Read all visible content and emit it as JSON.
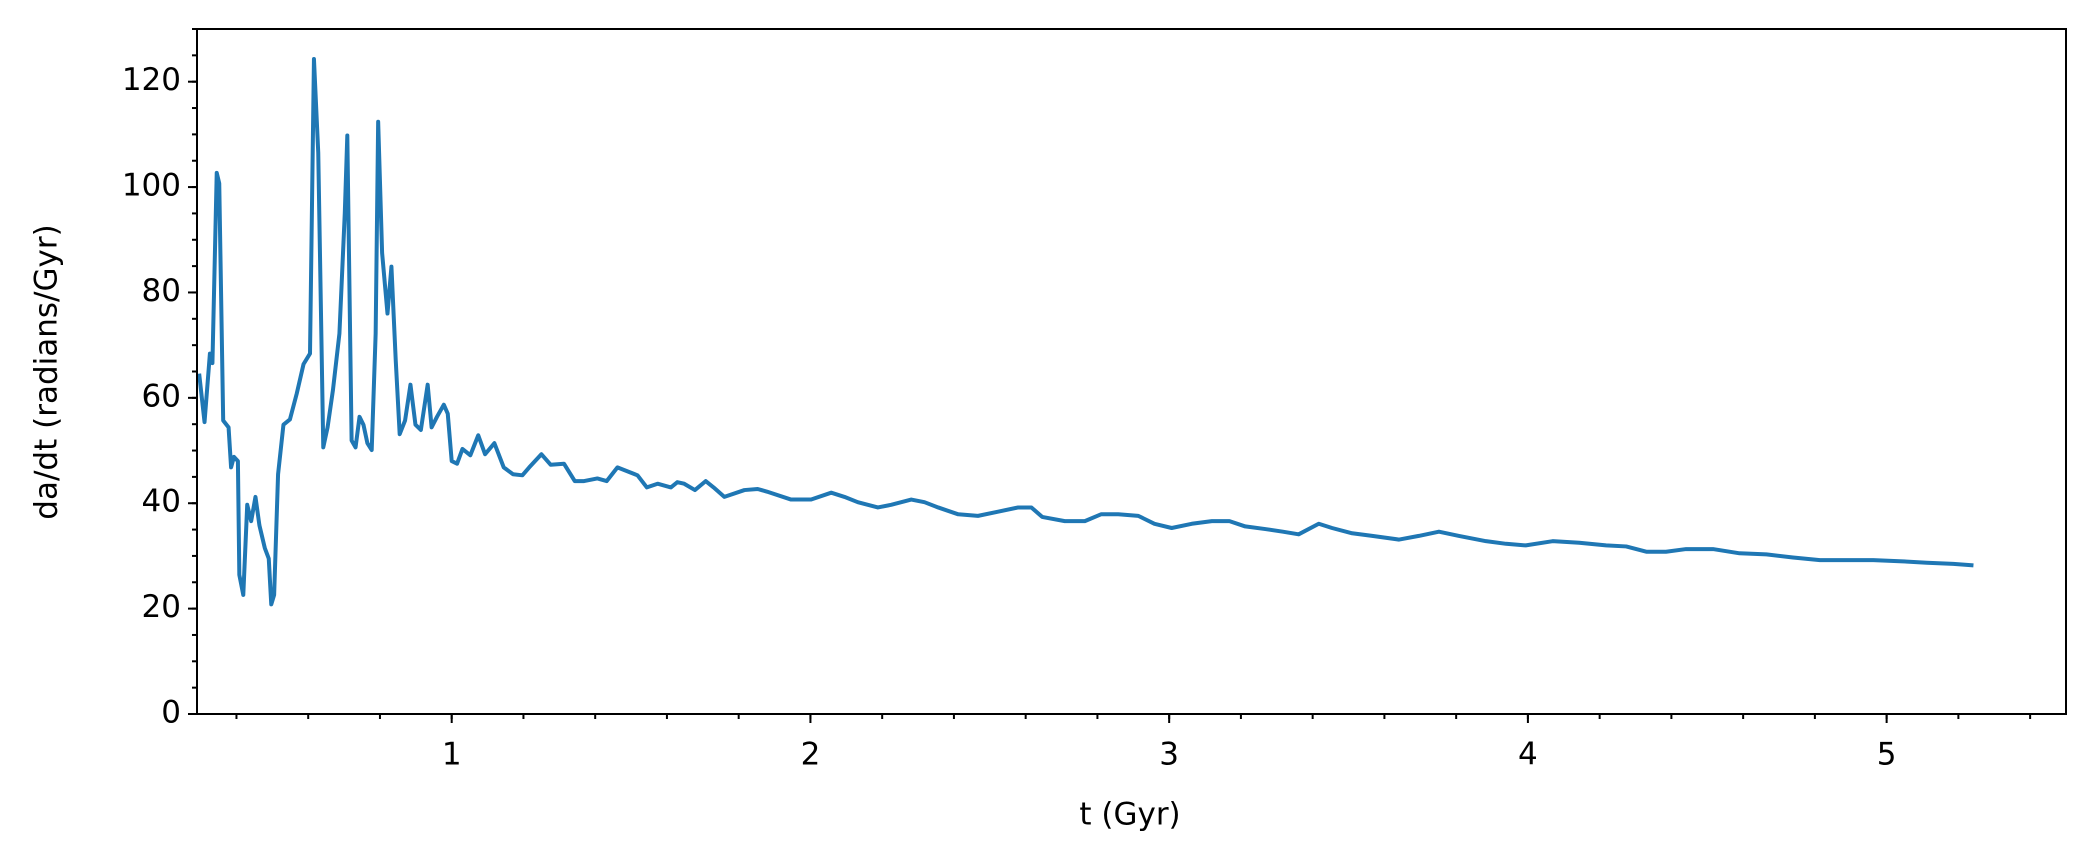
{
  "chart_data": {
    "type": "line",
    "xlabel": "t (Gyr)",
    "ylabel": "da/dt (radians/Gyr)",
    "x": [
      0.296,
      0.311,
      0.326,
      0.333,
      0.345,
      0.352,
      0.363,
      0.378,
      0.385,
      0.393,
      0.404,
      0.408,
      0.419,
      0.43,
      0.441,
      0.453,
      0.464,
      0.479,
      0.49,
      0.497,
      0.505,
      0.516,
      0.531,
      0.549,
      0.568,
      0.587,
      0.605,
      0.616,
      0.628,
      0.642,
      0.654,
      0.669,
      0.687,
      0.702,
      0.709,
      0.721,
      0.732,
      0.743,
      0.754,
      0.765,
      0.777,
      0.788,
      0.795,
      0.806,
      0.821,
      0.832,
      0.844,
      0.855,
      0.87,
      0.885,
      0.899,
      0.914,
      0.933,
      0.944,
      0.959,
      0.978,
      0.989,
      1.0,
      1.015,
      1.03,
      1.052,
      1.074,
      1.093,
      1.119,
      1.145,
      1.171,
      1.197,
      1.216,
      1.25,
      1.276,
      1.313,
      1.343,
      1.369,
      1.406,
      1.432,
      1.462,
      1.492,
      1.518,
      1.544,
      1.574,
      1.611,
      1.629,
      1.648,
      1.678,
      1.708,
      1.73,
      1.76,
      1.816,
      1.853,
      1.879,
      1.946,
      2.002,
      2.058,
      2.095,
      2.132,
      2.188,
      2.225,
      2.281,
      2.318,
      2.356,
      2.412,
      2.467,
      2.523,
      2.579,
      2.616,
      2.646,
      2.709,
      2.765,
      2.81,
      2.858,
      2.914,
      2.959,
      3.007,
      3.063,
      3.119,
      3.168,
      3.212,
      3.268,
      3.317,
      3.361,
      3.417,
      3.454,
      3.51,
      3.566,
      3.641,
      3.696,
      3.752,
      3.808,
      3.883,
      3.939,
      3.994,
      4.069,
      4.143,
      4.218,
      4.274,
      4.33,
      4.385,
      4.441,
      4.516,
      4.59,
      4.665,
      4.739,
      4.814,
      4.888,
      4.963,
      5.037,
      5.112,
      5.186,
      5.242
    ],
    "series": [
      {
        "name": "da/dt",
        "color": "#1f77b4",
        "values": [
          64.6,
          55.4,
          68.4,
          66.6,
          102.7,
          100.7,
          55.7,
          54.4,
          46.8,
          48.8,
          48.0,
          26.4,
          22.6,
          39.7,
          36.6,
          41.2,
          35.8,
          31.5,
          29.5,
          20.8,
          22.6,
          45.5,
          54.9,
          55.9,
          60.8,
          66.4,
          68.4,
          124.3,
          106.5,
          50.6,
          54.4,
          61.5,
          72.2,
          95.1,
          109.8,
          51.9,
          50.6,
          56.4,
          54.9,
          51.4,
          50.1,
          72.2,
          112.4,
          87.5,
          76.0,
          84.9,
          67.1,
          53.1,
          55.7,
          62.5,
          54.9,
          53.9,
          62.5,
          54.4,
          56.4,
          58.7,
          57.0,
          48.0,
          47.5,
          50.3,
          49.1,
          52.9,
          49.3,
          51.4,
          46.8,
          45.5,
          45.3,
          46.8,
          49.3,
          47.3,
          47.5,
          44.2,
          44.2,
          44.7,
          44.2,
          46.8,
          46.0,
          45.3,
          43.0,
          43.7,
          43.0,
          44.0,
          43.7,
          42.5,
          44.2,
          43.0,
          41.2,
          42.5,
          42.7,
          42.2,
          40.7,
          40.7,
          42.0,
          41.2,
          40.2,
          39.2,
          39.7,
          40.7,
          40.2,
          39.2,
          37.9,
          37.6,
          38.4,
          39.2,
          39.2,
          37.4,
          36.6,
          36.6,
          37.9,
          37.9,
          37.6,
          36.1,
          35.3,
          36.1,
          36.6,
          36.6,
          35.6,
          35.1,
          34.6,
          34.1,
          36.1,
          35.3,
          34.3,
          33.8,
          33.1,
          33.8,
          34.6,
          33.8,
          32.8,
          32.3,
          32.0,
          32.8,
          32.5,
          32.0,
          31.8,
          30.8,
          30.8,
          31.3,
          31.3,
          30.5,
          30.3,
          29.7,
          29.2,
          29.2,
          29.2,
          29.0,
          28.7,
          28.5,
          28.2
        ]
      }
    ],
    "xlim": [
      0.29,
      5.5
    ],
    "ylim": [
      0,
      130
    ],
    "xticks": [
      1,
      2,
      3,
      4,
      5
    ],
    "yticks": [
      0,
      20,
      40,
      60,
      80,
      100,
      120
    ],
    "minor_ticks": true,
    "grid": false
  }
}
